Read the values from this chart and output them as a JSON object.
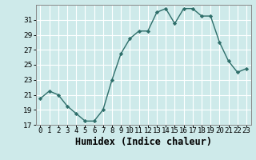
{
  "x": [
    0,
    1,
    2,
    3,
    4,
    5,
    6,
    7,
    8,
    9,
    10,
    11,
    12,
    13,
    14,
    15,
    16,
    17,
    18,
    19,
    20,
    21,
    22,
    23
  ],
  "y": [
    20.5,
    21.5,
    21.0,
    19.5,
    18.5,
    17.5,
    17.5,
    19.0,
    23.0,
    26.5,
    28.5,
    29.5,
    29.5,
    32.0,
    32.5,
    30.5,
    32.5,
    32.5,
    31.5,
    31.5,
    28.0,
    25.5,
    24.0,
    24.5
  ],
  "xlabel": "Humidex (Indice chaleur)",
  "ylim": [
    17,
    33
  ],
  "xlim": [
    -0.5,
    23.5
  ],
  "yticks": [
    17,
    19,
    21,
    23,
    25,
    27,
    29,
    31
  ],
  "xtick_labels": [
    "0",
    "1",
    "2",
    "3",
    "4",
    "5",
    "6",
    "7",
    "8",
    "9",
    "10",
    "11",
    "12",
    "13",
    "14",
    "15",
    "16",
    "17",
    "18",
    "19",
    "20",
    "21",
    "22",
    "23"
  ],
  "line_color": "#2e6e6a",
  "marker": "D",
  "marker_size": 2.2,
  "bg_color": "#ceeaea",
  "grid_color": "#ffffff",
  "xlabel_fontsize": 8.5,
  "tick_fontsize": 6.5,
  "linewidth": 1.0
}
